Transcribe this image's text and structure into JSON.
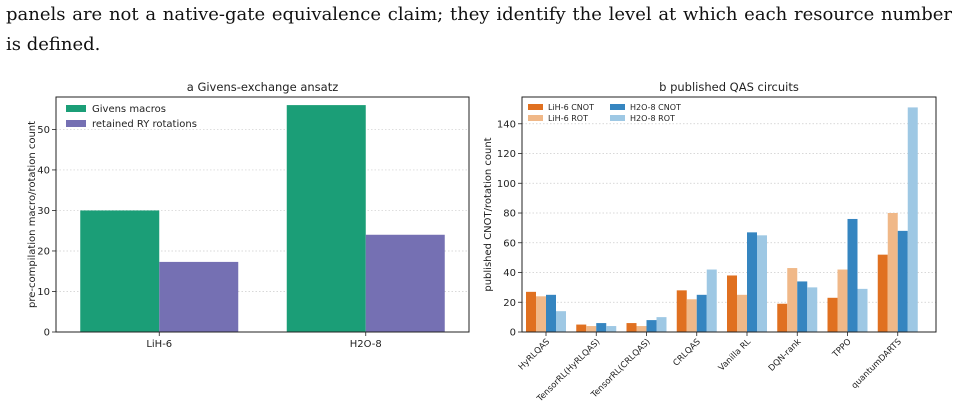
{
  "paragraph": {
    "line1": "panels are not a native-gate equivalence claim; they identify the level at which each resource number",
    "line2": "is defined."
  },
  "colors": {
    "givens": "#1b9e77",
    "ry": "#7570b3",
    "lih_cnot": "#e07020",
    "lih_rot": "#f0b888",
    "h2o_cnot": "#3585c0",
    "h2o_rot": "#9ec8e4",
    "grid": "#cccccc",
    "axis": "#222222"
  },
  "chart_data": [
    {
      "type": "bar",
      "title": "a  Givens-exchange ansatz",
      "xlabel": "",
      "ylabel": "pre-compilation macro/rotation count",
      "categories": [
        "LiH-6",
        "H2O-8"
      ],
      "series": [
        {
          "name": "Givens macros",
          "values": [
            30,
            56
          ]
        },
        {
          "name": "retained RY rotations",
          "values": [
            17.3,
            24
          ]
        }
      ],
      "ylim": [
        0,
        58
      ],
      "yticks": [
        0,
        10,
        20,
        30,
        40,
        50
      ],
      "grid": "horizontal, dotted",
      "legend": "top-left"
    },
    {
      "type": "bar",
      "title": "b  published QAS circuits",
      "xlabel": "",
      "ylabel": "published CNOT/rotation count",
      "categories": [
        "HyRLQAS",
        "TensorRL(HyRLQAS)",
        "TensorRL(CRLQAS)",
        "CRLQAS",
        "Vanilla RL",
        "DQN-rank",
        "TPPO",
        "quantumDARTS"
      ],
      "series": [
        {
          "name": "LiH-6 CNOT",
          "values": [
            27,
            5,
            6,
            28,
            38,
            19,
            23,
            52
          ]
        },
        {
          "name": "LiH-6 ROT",
          "values": [
            24,
            4,
            4,
            22,
            25,
            43,
            42,
            80
          ]
        },
        {
          "name": "H2O-8 CNOT",
          "values": [
            25,
            6,
            8,
            25,
            67,
            34,
            76,
            68
          ]
        },
        {
          "name": "H2O-8 ROT",
          "values": [
            14,
            4,
            10,
            42,
            65,
            30,
            29,
            151
          ]
        }
      ],
      "ylim": [
        0,
        158
      ],
      "yticks": [
        0,
        20,
        40,
        60,
        80,
        100,
        120,
        140
      ],
      "grid": "horizontal, dotted",
      "legend": "top-left"
    }
  ]
}
